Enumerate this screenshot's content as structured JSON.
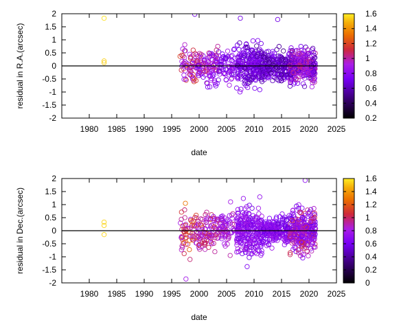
{
  "chart_data": [
    {
      "type": "scatter",
      "panel": "top",
      "xlabel": "date",
      "ylabel": "residual in R.A.(arcsec)",
      "xlim": [
        1975,
        2025
      ],
      "ylim": [
        -2,
        2
      ],
      "xticks": [
        1980,
        1985,
        1990,
        1995,
        2000,
        2005,
        2010,
        2015,
        2020,
        2025
      ],
      "yticks": [
        -2,
        -1.5,
        -1,
        -0.5,
        0,
        0.5,
        1,
        1.5,
        2
      ],
      "zero_line": true,
      "colorbar": {
        "min": 0.2,
        "max": 1.6,
        "ticks": [
          0.2,
          0.4,
          0.6,
          0.8,
          1,
          1.2,
          1.4,
          1.6
        ]
      },
      "isolated_points": [
        {
          "x": 1982.7,
          "y": 1.83,
          "c": 1.58
        },
        {
          "x": 1982.7,
          "y": 0.19,
          "c": 1.55
        },
        {
          "x": 1982.7,
          "y": 0.12,
          "c": 1.55
        },
        {
          "x": 1999.2,
          "y": 1.98,
          "c": 0.7
        },
        {
          "x": 2007.5,
          "y": 1.83,
          "c": 0.7
        },
        {
          "x": 2014.3,
          "y": 1.78,
          "c": 0.7
        }
      ],
      "clusters": [
        {
          "x_from": 1996.5,
          "x_to": 1999.5,
          "n": 60,
          "spread": 0.45,
          "cmin": 0.75,
          "cmax": 1.2
        },
        {
          "x_from": 1999.5,
          "x_to": 2003.5,
          "n": 110,
          "spread": 0.5,
          "cmin": 0.7,
          "cmax": 1.1
        },
        {
          "x_from": 2003.5,
          "x_to": 2006.5,
          "n": 70,
          "spread": 0.45,
          "cmin": 0.65,
          "cmax": 0.95
        },
        {
          "x_from": 2006.8,
          "x_to": 2011.5,
          "n": 260,
          "spread": 0.55,
          "cmin": 0.55,
          "cmax": 0.85
        },
        {
          "x_from": 2011.5,
          "x_to": 2016.5,
          "n": 220,
          "spread": 0.35,
          "cmin": 0.5,
          "cmax": 0.8
        },
        {
          "x_from": 2016.5,
          "x_to": 2021.2,
          "n": 320,
          "spread": 0.45,
          "cmin": 0.55,
          "cmax": 1.05
        }
      ]
    },
    {
      "type": "scatter",
      "panel": "bottom",
      "xlabel": "date",
      "ylabel": "residual in Dec.(arcsec)",
      "xlim": [
        1975,
        2025
      ],
      "ylim": [
        -2,
        2
      ],
      "xticks": [
        1980,
        1985,
        1990,
        1995,
        2000,
        2005,
        2010,
        2015,
        2020,
        2025
      ],
      "yticks": [
        -2,
        -1.5,
        -1,
        -0.5,
        0,
        0.5,
        1,
        1.5,
        2
      ],
      "zero_line": true,
      "colorbar": {
        "min": 0,
        "max": 1.6,
        "ticks": [
          0,
          0.2,
          0.4,
          0.6,
          0.8,
          1,
          1.2,
          1.4,
          1.6
        ]
      },
      "isolated_points": [
        {
          "x": 1982.7,
          "y": 0.33,
          "c": 1.55
        },
        {
          "x": 1982.7,
          "y": 0.2,
          "c": 1.55
        },
        {
          "x": 1982.7,
          "y": -0.15,
          "c": 1.55
        },
        {
          "x": 1997.5,
          "y": 1.05,
          "c": 1.3
        },
        {
          "x": 1997.6,
          "y": -1.85,
          "c": 0.8
        },
        {
          "x": 2019.3,
          "y": 1.93,
          "c": 0.7
        }
      ],
      "clusters": [
        {
          "x_from": 1996.5,
          "x_to": 1999.5,
          "n": 60,
          "spread": 0.5,
          "cmin": 0.8,
          "cmax": 1.25
        },
        {
          "x_from": 1999.5,
          "x_to": 2003.5,
          "n": 110,
          "spread": 0.5,
          "cmin": 0.75,
          "cmax": 1.1
        },
        {
          "x_from": 2003.5,
          "x_to": 2006.5,
          "n": 70,
          "spread": 0.5,
          "cmin": 0.65,
          "cmax": 0.95
        },
        {
          "x_from": 2006.8,
          "x_to": 2011.5,
          "n": 260,
          "spread": 0.6,
          "cmin": 0.55,
          "cmax": 0.85
        },
        {
          "x_from": 2011.5,
          "x_to": 2016.5,
          "n": 220,
          "spread": 0.35,
          "cmin": 0.5,
          "cmax": 0.8
        },
        {
          "x_from": 2016.5,
          "x_to": 2021.2,
          "n": 320,
          "spread": 0.55,
          "cmin": 0.55,
          "cmax": 1.05
        }
      ]
    }
  ]
}
